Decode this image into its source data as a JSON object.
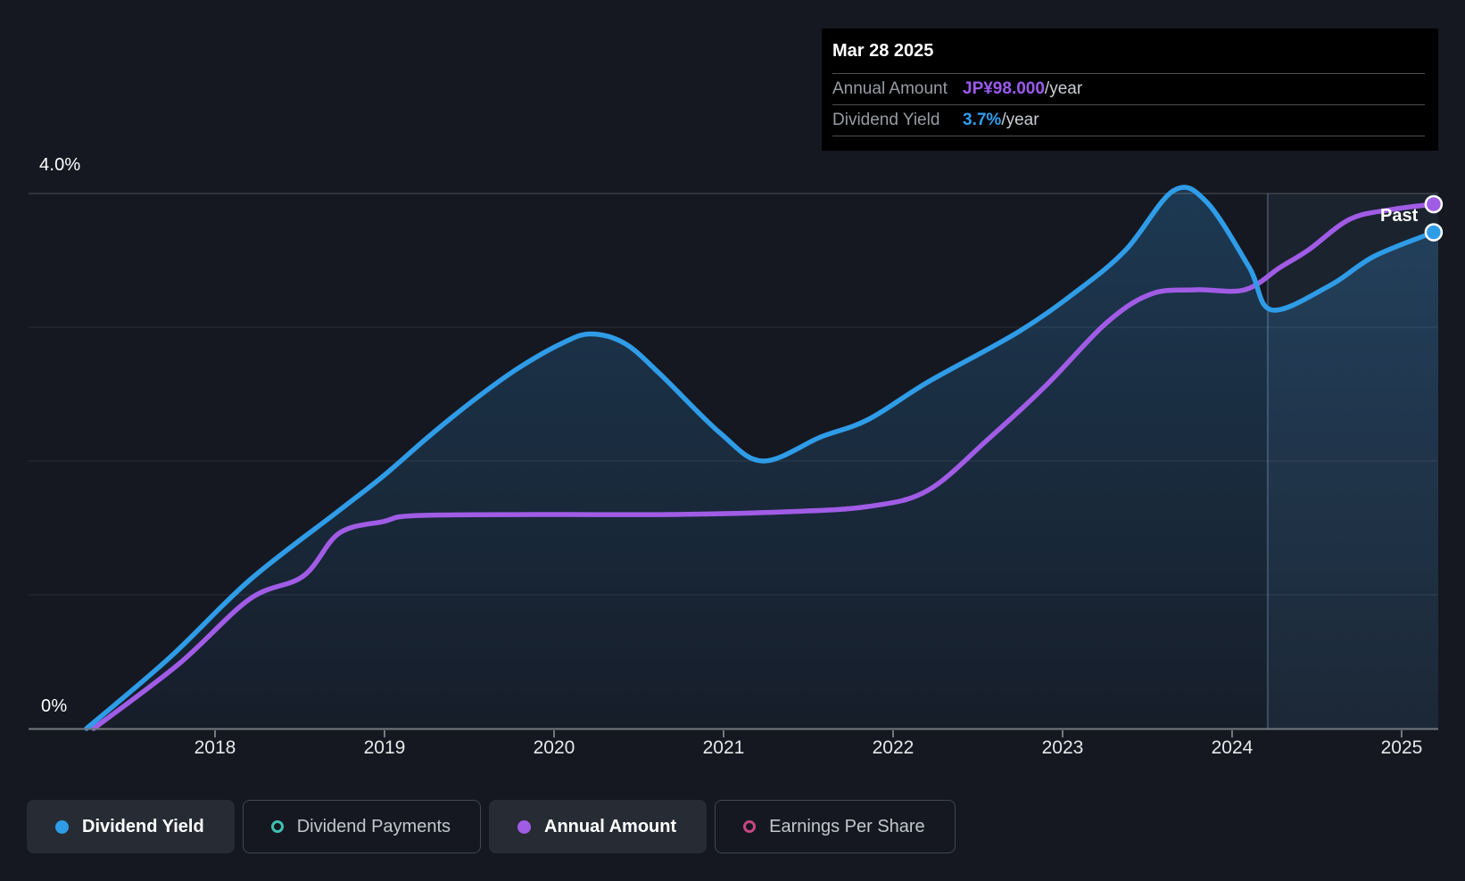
{
  "tooltip": {
    "date": "Mar 28 2025",
    "rows": [
      {
        "label": "Annual Amount",
        "value": "JP¥98.000",
        "suffix": "/year",
        "value_color": "#9c5bf0"
      },
      {
        "label": "Dividend Yield",
        "value": "3.7%",
        "suffix": "/year",
        "value_color": "#2e9ff0"
      }
    ]
  },
  "chart": {
    "past_label": "Past",
    "y_top_label": "4.0%",
    "y_zero_label": "0%"
  },
  "legend": [
    {
      "label": "Dividend Yield",
      "marker_color": "#2f9ce8",
      "marker_filled": true,
      "active": true
    },
    {
      "label": "Dividend Payments",
      "marker_color": "#3fc1b0",
      "marker_filled": false,
      "active": false
    },
    {
      "label": "Annual Amount",
      "marker_color": "#a15ce6",
      "marker_filled": true,
      "active": true
    },
    {
      "label": "Earnings Per Share",
      "marker_color": "#c74683",
      "marker_filled": false,
      "active": false
    }
  ],
  "chart_data": {
    "type": "line",
    "title": "",
    "xlim": [
      2016.9,
      2025.216
    ],
    "ylim": [
      0,
      4.0
    ],
    "x_ticks": [
      2018,
      2019,
      2020,
      2021,
      2022,
      2023,
      2024,
      2025
    ],
    "y_gridlines_pct": [
      4,
      3,
      2,
      1
    ],
    "grid": true,
    "legend_position": "bottom",
    "past_divider_x": 2024.21,
    "series": [
      {
        "name": "Dividend Yield",
        "color": "#2f9ce8",
        "unit": "percent",
        "area_fill": true,
        "end_marker": true,
        "points": [
          [
            2017.242,
            0.0
          ],
          [
            2017.732,
            0.53
          ],
          [
            2018.205,
            1.11
          ],
          [
            2018.732,
            1.63
          ],
          [
            2018.995,
            1.89
          ],
          [
            2019.258,
            2.18
          ],
          [
            2019.521,
            2.45
          ],
          [
            2019.784,
            2.69
          ],
          [
            2020.047,
            2.88
          ],
          [
            2020.216,
            2.95
          ],
          [
            2020.416,
            2.88
          ],
          [
            2020.626,
            2.65
          ],
          [
            2020.979,
            2.21
          ],
          [
            2021.232,
            2.0
          ],
          [
            2021.574,
            2.18
          ],
          [
            2021.853,
            2.31
          ],
          [
            2022.205,
            2.59
          ],
          [
            2022.732,
            2.96
          ],
          [
            2023.084,
            3.27
          ],
          [
            2023.374,
            3.58
          ],
          [
            2023.653,
            4.02
          ],
          [
            2023.847,
            3.94
          ],
          [
            2024.1,
            3.45
          ],
          [
            2024.232,
            3.13
          ],
          [
            2024.574,
            3.31
          ],
          [
            2024.837,
            3.53
          ],
          [
            2025.189,
            3.71
          ]
        ]
      },
      {
        "name": "Annual Amount",
        "color": "#a15ce6",
        "unit": "JPY_per_year",
        "axis_scale_jpy_per_pct": 25,
        "area_fill": false,
        "end_marker": true,
        "points": [
          [
            2017.284,
            0.0
          ],
          [
            2017.784,
            12.0
          ],
          [
            2018.205,
            24.2
          ],
          [
            2018.521,
            28.5
          ],
          [
            2018.732,
            36.5
          ],
          [
            2018.995,
            38.7
          ],
          [
            2019.179,
            39.8
          ],
          [
            2019.889,
            40.0
          ],
          [
            2020.679,
            40.0
          ],
          [
            2021.363,
            40.5
          ],
          [
            2021.853,
            41.5
          ],
          [
            2022.205,
            44.5
          ],
          [
            2022.558,
            54.0
          ],
          [
            2022.905,
            64.2
          ],
          [
            2023.258,
            75.8
          ],
          [
            2023.521,
            81.2
          ],
          [
            2023.784,
            82.0
          ],
          [
            2024.074,
            82.0
          ],
          [
            2024.284,
            86.2
          ],
          [
            2024.453,
            89.5
          ],
          [
            2024.695,
            95.2
          ],
          [
            2024.942,
            97.0
          ],
          [
            2025.189,
            98.0
          ]
        ]
      }
    ]
  }
}
